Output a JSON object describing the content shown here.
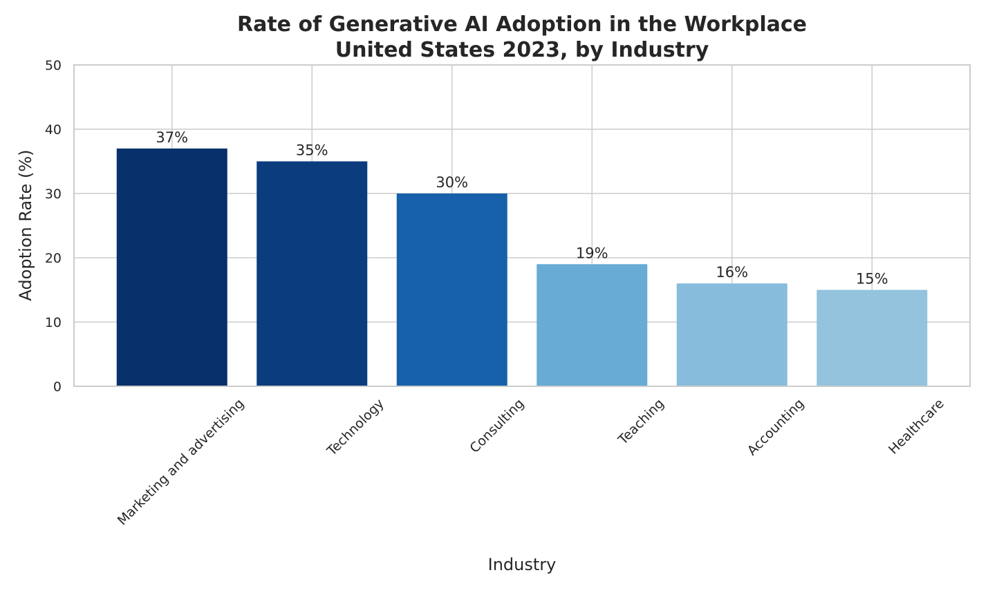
{
  "chart_data": {
    "type": "bar",
    "title": "Rate of Generative AI Adoption in the Workplace",
    "subtitle": "United States 2023, by Industry",
    "xlabel": "Industry",
    "ylabel": "Adoption Rate (%)",
    "categories": [
      "Marketing and advertising",
      "Technology",
      "Consulting",
      "Teaching",
      "Accounting",
      "Healthcare"
    ],
    "values": [
      37,
      35,
      30,
      19,
      16,
      15
    ],
    "value_labels": [
      "37%",
      "35%",
      "30%",
      "19%",
      "16%",
      "15%"
    ],
    "bar_colors": [
      "#08306b",
      "#0a3c7e",
      "#1661aa",
      "#68abd4",
      "#87bcdc",
      "#93c3dd"
    ],
    "ylim": [
      0,
      50
    ],
    "yticks": [
      0,
      10,
      20,
      30,
      40,
      50
    ],
    "ytick_labels": [
      "0",
      "10",
      "20",
      "30",
      "40",
      "50"
    ],
    "grid": true,
    "legend": false
  }
}
